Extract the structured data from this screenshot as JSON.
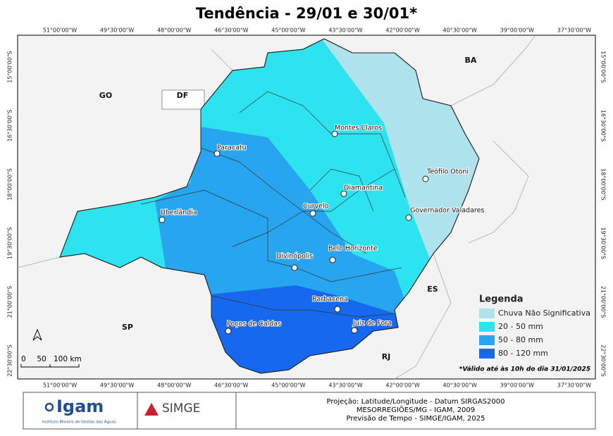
{
  "title": "Tendência - 29/01 e 30/01*",
  "longitude_labels": [
    "51°00'00\"W",
    "49°30'00\"W",
    "48°00'00\"W",
    "46°30'00\"W",
    "45°00'00\"W",
    "43°30'00\"W",
    "42°00'00\"W",
    "40°30'00\"W",
    "39°00'00\"W",
    "37°30'00\"W"
  ],
  "latitude_labels": [
    "15°00'00\"S",
    "16°30'00\"S",
    "18°00'00\"S",
    "19°30'00\"S",
    "21°00'00\"S",
    "22°30'00\"S"
  ],
  "states": [
    "BA",
    "GO",
    "DF",
    "SP",
    "ES",
    "RJ"
  ],
  "cities": [
    "Montes Claros",
    "Paracatu",
    "Teófilo Otoni",
    "Diamantina",
    "Curvelo",
    "Uberlândia",
    "Governador Valadares",
    "Belo Horizonte",
    "Divinópolis",
    "Barbacena",
    "Juiz de Fora",
    "Poços de Caldas"
  ],
  "legend": {
    "title": "Legenda",
    "items": [
      {
        "label": "Chuva Não Significativa",
        "color": "#aee3ee"
      },
      {
        "label": "20 - 50 mm",
        "color": "#2ee3f0"
      },
      {
        "label": "50 - 80 mm",
        "color": "#27a6ef"
      },
      {
        "label": "80 - 120 mm",
        "color": "#1668ee"
      }
    ]
  },
  "scale_bar": [
    "0",
    "50",
    "100 km"
  ],
  "note": "*Válido até às 10h do dia 31/01/2025",
  "footer": {
    "logo1": "Igam",
    "logo1_sub": "Instituto Mineiro de Gestão das Águas",
    "logo2": "SIMGE",
    "lines": [
      "Projeção: Latitude/Longitude - Datum SIRGAS2000",
      "MESORREGIÕES/MG - IGAM, 2009",
      "Previsão de Tempo - SIMGE/IGAM, 2025"
    ]
  }
}
